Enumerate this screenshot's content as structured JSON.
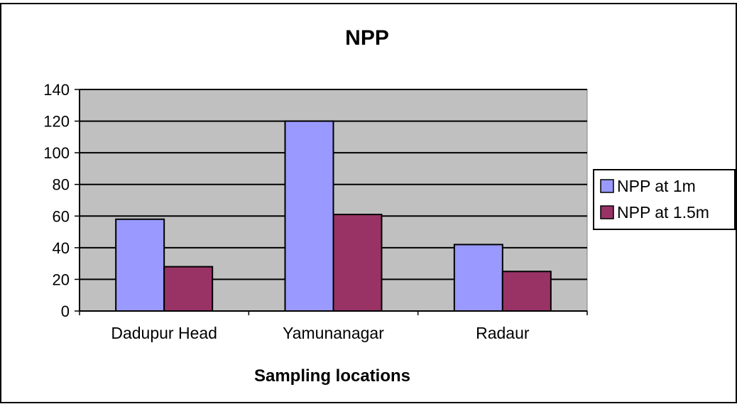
{
  "chart_data": {
    "type": "bar",
    "title": "NPP",
    "xlabel": "Sampling locations",
    "ylabel": "",
    "ylim": [
      0,
      140
    ],
    "yticks": [
      0,
      20,
      40,
      60,
      80,
      100,
      120,
      140
    ],
    "categories": [
      "Dadupur Head",
      "Yamunanagar",
      "Radaur"
    ],
    "series": [
      {
        "name": "NPP at 1m",
        "color": "#9999ff",
        "values": [
          58,
          120,
          42
        ]
      },
      {
        "name": "NPP at 1.5m",
        "color": "#993366",
        "values": [
          28,
          61,
          25
        ]
      }
    ],
    "grid": true,
    "legend_position": "right",
    "plot_background": "#c0c0c0"
  }
}
